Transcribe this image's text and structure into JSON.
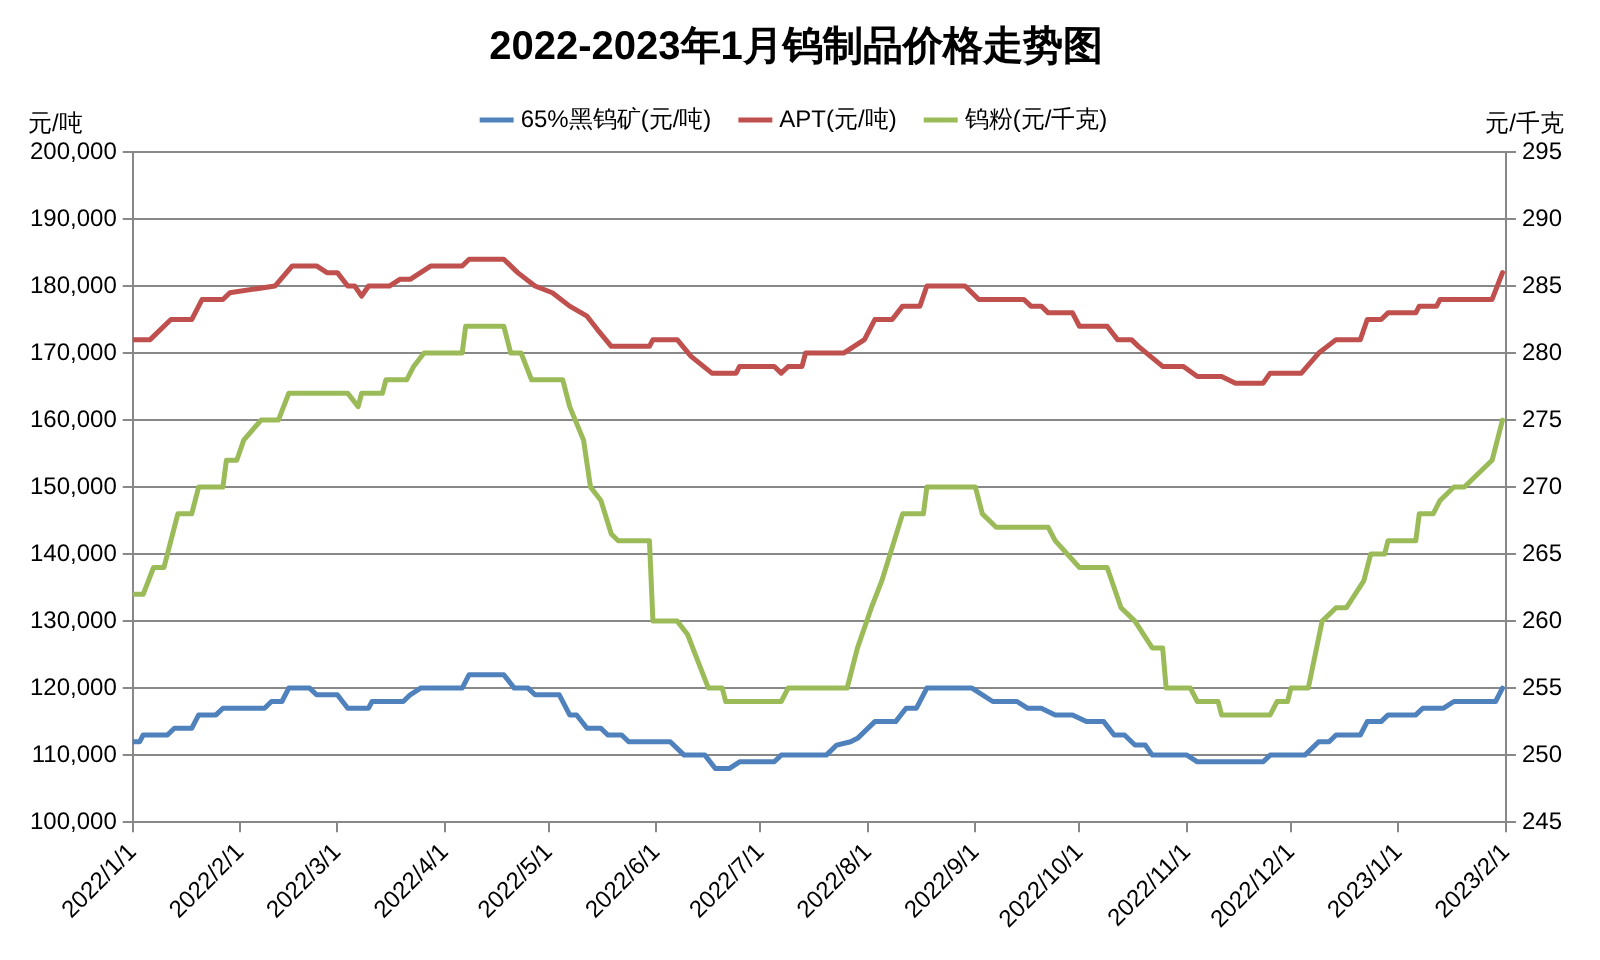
{
  "chart_data": {
    "type": "line",
    "title": "2022-2023年1月钨制品价格走势图",
    "ylabel": "元/吨",
    "y2label": "元/千克",
    "xlim": [
      "2022-01-01",
      "2023-02-01"
    ],
    "xticks": [
      {
        "value": "2022-01-01",
        "label": "2022/1/1"
      },
      {
        "value": "2022-02-01",
        "label": "2022/2/1"
      },
      {
        "value": "2022-03-01",
        "label": "2022/3/1"
      },
      {
        "value": "2022-04-01",
        "label": "2022/4/1"
      },
      {
        "value": "2022-05-01",
        "label": "2022/5/1"
      },
      {
        "value": "2022-06-01",
        "label": "2022/6/1"
      },
      {
        "value": "2022-07-01",
        "label": "2022/7/1"
      },
      {
        "value": "2022-08-01",
        "label": "2022/8/1"
      },
      {
        "value": "2022-09-01",
        "label": "2022/9/1"
      },
      {
        "value": "2022-10-01",
        "label": "2022/10/1"
      },
      {
        "value": "2022-11-01",
        "label": "2022/11/1"
      },
      {
        "value": "2022-12-01",
        "label": "2022/12/1"
      },
      {
        "value": "2023-01-01",
        "label": "2023/1/1"
      },
      {
        "value": "2023-02-01",
        "label": "2023/2/1"
      }
    ],
    "ylim": [
      100000,
      200000
    ],
    "yticks": [
      {
        "value": 100000,
        "label": "100,000"
      },
      {
        "value": 110000,
        "label": "110,000"
      },
      {
        "value": 120000,
        "label": "120,000"
      },
      {
        "value": 130000,
        "label": "130,000"
      },
      {
        "value": 140000,
        "label": "140,000"
      },
      {
        "value": 150000,
        "label": "150,000"
      },
      {
        "value": 160000,
        "label": "160,000"
      },
      {
        "value": 170000,
        "label": "170,000"
      },
      {
        "value": 180000,
        "label": "180,000"
      },
      {
        "value": 190000,
        "label": "190,000"
      },
      {
        "value": 200000,
        "label": "200,000"
      }
    ],
    "y2lim": [
      245,
      295
    ],
    "y2ticks": [
      245,
      250,
      255,
      260,
      265,
      270,
      275,
      280,
      285,
      290,
      295
    ],
    "grid": "y",
    "legend": "top",
    "marker": "none",
    "line_style": "solid",
    "series": [
      {
        "name": "65%黑钨矿(元/吨)",
        "color": "#4f81bd",
        "x": [
          "2022-01-01",
          "2022-01-03",
          "2022-01-04",
          "2022-01-11",
          "2022-01-13",
          "2022-01-18",
          "2022-01-20",
          "2022-01-25",
          "2022-01-27",
          "2022-02-08",
          "2022-02-10",
          "2022-02-13",
          "2022-02-15",
          "2022-02-21",
          "2022-02-23",
          "2022-03-01",
          "2022-03-04",
          "2022-03-10",
          "2022-03-11",
          "2022-03-20",
          "2022-03-22",
          "2022-03-25",
          "2022-04-06",
          "2022-04-08",
          "2022-04-18",
          "2022-04-21",
          "2022-04-25",
          "2022-04-27",
          "2022-05-04",
          "2022-05-07",
          "2022-05-09",
          "2022-05-12",
          "2022-05-16",
          "2022-05-18",
          "2022-05-22",
          "2022-05-24",
          "2022-06-05",
          "2022-06-09",
          "2022-06-15",
          "2022-06-18",
          "2022-06-22",
          "2022-06-25",
          "2022-07-05",
          "2022-07-07",
          "2022-07-20",
          "2022-07-23",
          "2022-07-27",
          "2022-07-29",
          "2022-08-03",
          "2022-08-09",
          "2022-08-12",
          "2022-08-15",
          "2022-08-18",
          "2022-08-31",
          "2022-09-06",
          "2022-09-13",
          "2022-09-16",
          "2022-09-20",
          "2022-09-24",
          "2022-09-29",
          "2022-10-03",
          "2022-10-08",
          "2022-10-11",
          "2022-10-14",
          "2022-10-17",
          "2022-10-20",
          "2022-10-22",
          "2022-11-01",
          "2022-11-04",
          "2022-11-23",
          "2022-11-25",
          "2022-12-05",
          "2022-12-09",
          "2022-12-12",
          "2022-12-14",
          "2022-12-21",
          "2022-12-23",
          "2022-12-27",
          "2022-12-29",
          "2023-01-06",
          "2023-01-08",
          "2023-01-14",
          "2023-01-17",
          "2023-01-29",
          "2023-01-31"
        ],
        "values": [
          112000,
          112000,
          113000,
          113000,
          114000,
          114000,
          116000,
          116000,
          117000,
          117000,
          118000,
          118000,
          120000,
          120000,
          119000,
          119000,
          117000,
          117000,
          118000,
          118000,
          119000,
          120000,
          120000,
          122000,
          122000,
          120000,
          120000,
          119000,
          119000,
          116000,
          116000,
          114000,
          114000,
          113000,
          113000,
          112000,
          112000,
          110000,
          110000,
          108000,
          108000,
          109000,
          109000,
          110000,
          110000,
          111500,
          112000,
          112500,
          115000,
          115000,
          117000,
          117000,
          120000,
          120000,
          118000,
          118000,
          117000,
          117000,
          116000,
          116000,
          115000,
          115000,
          113000,
          113000,
          111500,
          111500,
          110000,
          110000,
          109000,
          109000,
          110000,
          110000,
          112000,
          112000,
          113000,
          113000,
          115000,
          115000,
          116000,
          116000,
          117000,
          117000,
          118000,
          118000,
          120000
        ]
      },
      {
        "name": "APT(元/吨)",
        "color": "#c0504d",
        "x": [
          "2022-01-01",
          "2022-01-06",
          "2022-01-12",
          "2022-01-18",
          "2022-01-21",
          "2022-01-27",
          "2022-01-29",
          "2022-02-11",
          "2022-02-16",
          "2022-02-23",
          "2022-02-26",
          "2022-03-01",
          "2022-03-04",
          "2022-03-06",
          "2022-03-08",
          "2022-03-10",
          "2022-03-16",
          "2022-03-19",
          "2022-03-22",
          "2022-03-25",
          "2022-03-28",
          "2022-04-06",
          "2022-04-08",
          "2022-04-18",
          "2022-04-22",
          "2022-04-27",
          "2022-05-02",
          "2022-05-07",
          "2022-05-12",
          "2022-05-15",
          "2022-05-19",
          "2022-05-30",
          "2022-05-31",
          "2022-06-07",
          "2022-06-11",
          "2022-06-17",
          "2022-06-24",
          "2022-06-25",
          "2022-07-05",
          "2022-07-07",
          "2022-07-09",
          "2022-07-13",
          "2022-07-14",
          "2022-07-25",
          "2022-07-31",
          "2022-08-03",
          "2022-08-08",
          "2022-08-11",
          "2022-08-16",
          "2022-08-18",
          "2022-08-29",
          "2022-09-02",
          "2022-09-15",
          "2022-09-17",
          "2022-09-20",
          "2022-09-22",
          "2022-09-29",
          "2022-10-01",
          "2022-10-09",
          "2022-10-12",
          "2022-10-16",
          "2022-10-18",
          "2022-10-25",
          "2022-10-31",
          "2022-11-04",
          "2022-11-11",
          "2022-11-15",
          "2022-11-23",
          "2022-11-25",
          "2022-12-04",
          "2022-12-09",
          "2022-12-14",
          "2022-12-21",
          "2022-12-23",
          "2022-12-27",
          "2022-12-29",
          "2023-01-06",
          "2023-01-07",
          "2023-01-12",
          "2023-01-13",
          "2023-01-28",
          "2023-01-31"
        ],
        "values": [
          172000,
          172000,
          175000,
          175000,
          178000,
          178000,
          179000,
          180000,
          183000,
          183000,
          182000,
          182000,
          180000,
          180000,
          178500,
          180000,
          180000,
          181000,
          181000,
          182000,
          183000,
          183000,
          184000,
          184000,
          182000,
          180000,
          179000,
          177000,
          175500,
          173500,
          171000,
          171000,
          172000,
          172000,
          169500,
          167000,
          167000,
          168000,
          168000,
          167000,
          168000,
          168000,
          170000,
          170000,
          172000,
          175000,
          175000,
          177000,
          177000,
          180000,
          180000,
          178000,
          178000,
          177000,
          177000,
          176000,
          176000,
          174000,
          174000,
          172000,
          172000,
          171000,
          168000,
          168000,
          166500,
          166500,
          165500,
          165500,
          167000,
          167000,
          170000,
          172000,
          172000,
          175000,
          175000,
          176000,
          176000,
          177000,
          177000,
          178000,
          178000,
          182000
        ]
      },
      {
        "name": "钨粉(元/千克)",
        "color": "#9bbb59",
        "axis": "y2",
        "x": [
          "2022-01-01",
          "2022-01-04",
          "2022-01-07",
          "2022-01-10",
          "2022-01-14",
          "2022-01-18",
          "2022-01-20",
          "2022-01-27",
          "2022-01-28",
          "2022-01-31",
          "2022-02-02",
          "2022-02-07",
          "2022-02-12",
          "2022-02-15",
          "2022-03-04",
          "2022-03-07",
          "2022-03-08",
          "2022-03-14",
          "2022-03-15",
          "2022-03-21",
          "2022-03-23",
          "2022-03-26",
          "2022-04-06",
          "2022-04-07",
          "2022-04-18",
          "2022-04-20",
          "2022-04-23",
          "2022-04-26",
          "2022-05-05",
          "2022-05-07",
          "2022-05-11",
          "2022-05-13",
          "2022-05-16",
          "2022-05-19",
          "2022-05-21",
          "2022-05-30",
          "2022-05-31",
          "2022-06-07",
          "2022-06-10",
          "2022-06-13",
          "2022-06-16",
          "2022-06-20",
          "2022-06-21",
          "2022-07-07",
          "2022-07-09",
          "2022-07-26",
          "2022-07-29",
          "2022-08-02",
          "2022-08-05",
          "2022-08-11",
          "2022-08-17",
          "2022-08-18",
          "2022-09-01",
          "2022-09-03",
          "2022-09-07",
          "2022-09-22",
          "2022-09-24",
          "2022-10-01",
          "2022-10-09",
          "2022-10-13",
          "2022-10-17",
          "2022-10-22",
          "2022-10-25",
          "2022-10-26",
          "2022-11-02",
          "2022-11-04",
          "2022-11-10",
          "2022-11-11",
          "2022-11-25",
          "2022-11-27",
          "2022-11-30",
          "2022-12-01",
          "2022-12-06",
          "2022-12-10",
          "2022-12-14",
          "2022-12-17",
          "2022-12-22",
          "2022-12-24",
          "2022-12-28",
          "2022-12-29",
          "2023-01-06",
          "2023-01-07",
          "2023-01-11",
          "2023-01-13",
          "2023-01-17",
          "2023-01-20",
          "2023-01-28",
          "2023-01-31"
        ],
        "values": [
          262,
          262,
          264,
          264,
          268,
          268,
          270,
          270,
          272,
          272,
          273.5,
          275,
          275,
          277,
          277,
          276,
          277,
          277,
          278,
          278,
          279,
          280,
          280,
          282,
          282,
          280,
          280,
          278,
          278,
          276,
          273.5,
          270,
          269,
          266.5,
          266,
          266,
          260,
          260,
          259,
          257,
          255,
          255,
          254,
          254,
          255,
          255,
          258,
          261,
          263,
          268,
          268,
          270,
          270,
          268,
          267,
          267,
          266,
          264,
          264,
          261,
          260,
          258,
          258,
          255,
          255,
          254,
          254,
          253,
          253,
          254,
          254,
          255,
          255,
          260,
          261,
          261,
          263,
          265,
          265,
          266,
          266,
          268,
          268,
          269,
          270,
          270,
          272,
          275
        ]
      }
    ]
  }
}
